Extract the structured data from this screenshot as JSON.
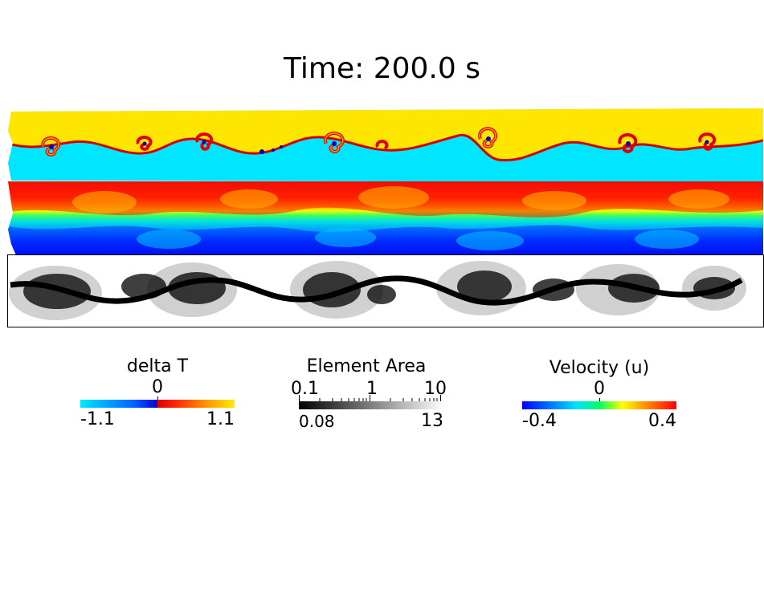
{
  "header": {
    "title": "Time: 200.0 s"
  },
  "legends": {
    "delta_t": {
      "title": "delta T",
      "mid": "0",
      "min": "-1.1",
      "max": "1.1",
      "colors": [
        "#00e8ff",
        "#0000d8",
        "#d80000",
        "#ff6a00",
        "#ffee00"
      ]
    },
    "element_area": {
      "title": "Element Area",
      "ticks": [
        "0.1",
        "1",
        "10"
      ],
      "min": "0.08",
      "max": "13",
      "colors": [
        "#000000",
        "#ffffff"
      ],
      "scale": "log"
    },
    "velocity": {
      "title": "Velocity (u)",
      "mid": "0",
      "min": "-0.4",
      "max": "0.4",
      "colors": [
        "#0000ff",
        "#00bfff",
        "#00ff7f",
        "#ffff00",
        "#ff8000",
        "#ff0000"
      ]
    }
  }
}
